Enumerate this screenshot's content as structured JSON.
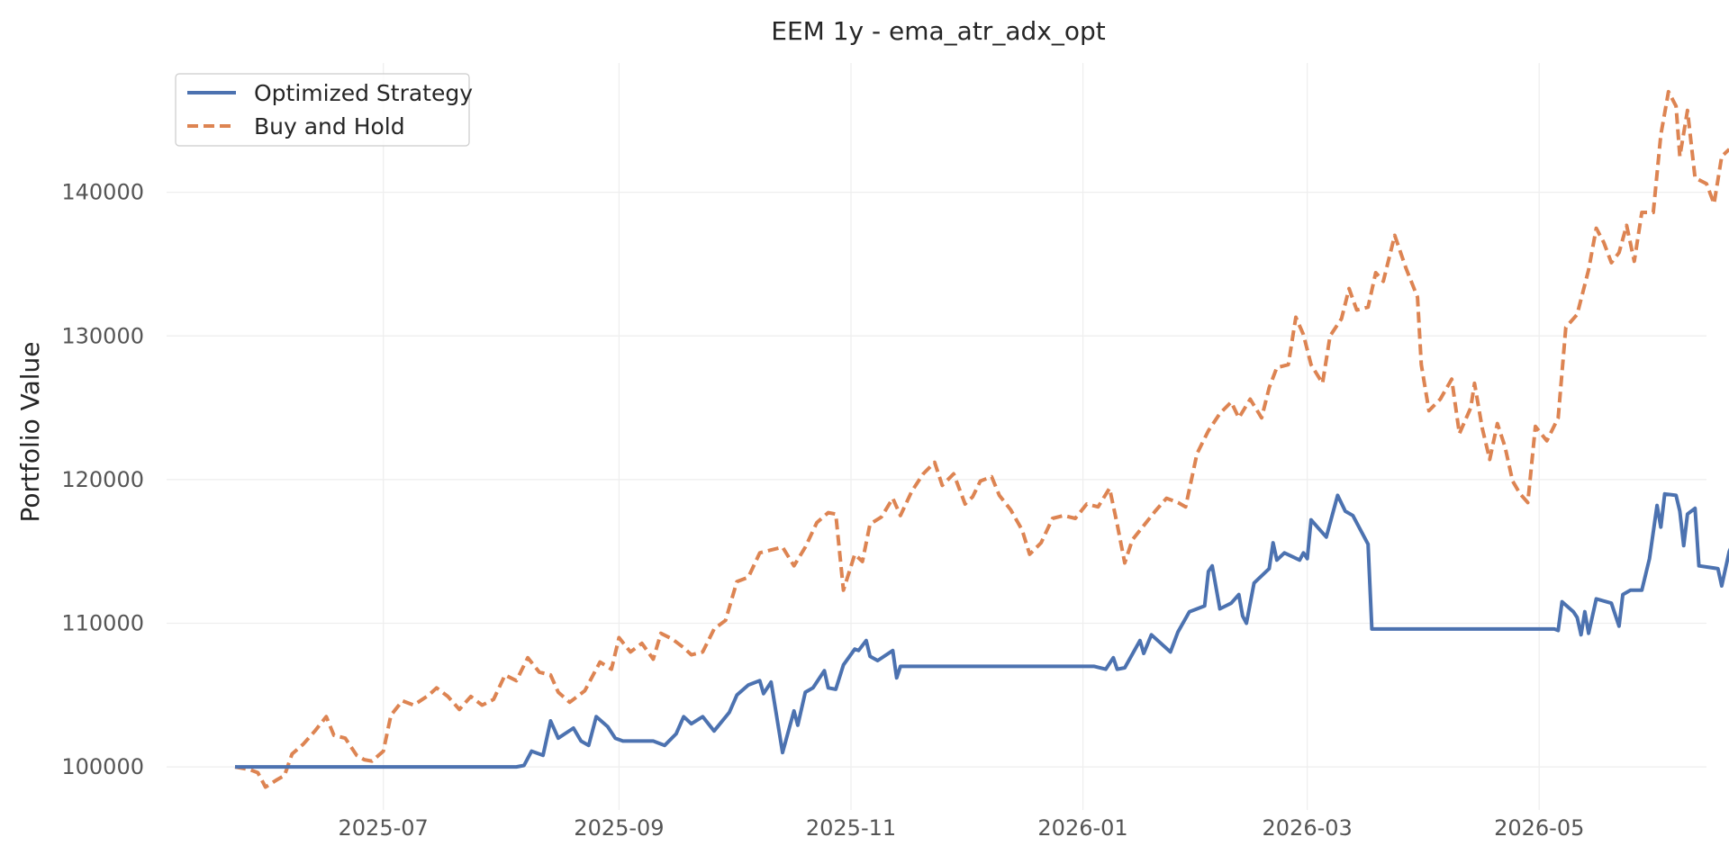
{
  "chart_data": {
    "type": "line",
    "title": "EEM 1y - ema_atr_adx_opt",
    "xlabel": "",
    "ylabel": "Portfolio Value",
    "grid": true,
    "legend_placement": "top-left",
    "ylim": [
      97000,
      149000
    ],
    "xlim": [
      "2025-05-05",
      "2026-06-14"
    ],
    "x_ticks": [
      "2025-07",
      "2025-09",
      "2025-11",
      "2026-01",
      "2026-03",
      "2026-05"
    ],
    "y_ticks": [
      100000,
      110000,
      120000,
      130000,
      140000
    ],
    "series": [
      {
        "name": "Optimized Strategy",
        "color": "#4c72b0",
        "style": "solid",
        "points": [
          [
            "2025-05-23",
            100000
          ],
          [
            "2025-06-15",
            100000
          ],
          [
            "2025-07-10",
            100000
          ],
          [
            "2025-08-05",
            100000
          ],
          [
            "2025-08-07",
            100100
          ],
          [
            "2025-08-09",
            101100
          ],
          [
            "2025-08-12",
            100800
          ],
          [
            "2025-08-14",
            103200
          ],
          [
            "2025-08-16",
            102000
          ],
          [
            "2025-08-20",
            102700
          ],
          [
            "2025-08-22",
            101800
          ],
          [
            "2025-08-24",
            101500
          ],
          [
            "2025-08-26",
            103500
          ],
          [
            "2025-08-29",
            102800
          ],
          [
            "2025-08-31",
            102000
          ],
          [
            "2025-09-02",
            101800
          ],
          [
            "2025-09-10",
            101800
          ],
          [
            "2025-09-13",
            101500
          ],
          [
            "2025-09-16",
            102300
          ],
          [
            "2025-09-18",
            103500
          ],
          [
            "2025-09-20",
            103000
          ],
          [
            "2025-09-23",
            103500
          ],
          [
            "2025-09-26",
            102500
          ],
          [
            "2025-09-30",
            103800
          ],
          [
            "2025-10-02",
            105000
          ],
          [
            "2025-10-05",
            105700
          ],
          [
            "2025-10-08",
            106000
          ],
          [
            "2025-10-09",
            105100
          ],
          [
            "2025-10-11",
            105900
          ],
          [
            "2025-10-14",
            101000
          ],
          [
            "2025-10-17",
            103900
          ],
          [
            "2025-10-18",
            102900
          ],
          [
            "2025-10-20",
            105200
          ],
          [
            "2025-10-22",
            105500
          ],
          [
            "2025-10-25",
            106700
          ],
          [
            "2025-10-26",
            105500
          ],
          [
            "2025-10-28",
            105400
          ],
          [
            "2025-10-30",
            107100
          ],
          [
            "2025-11-02",
            108200
          ],
          [
            "2025-11-03",
            108100
          ],
          [
            "2025-11-05",
            108800
          ],
          [
            "2025-11-06",
            107700
          ],
          [
            "2025-11-08",
            107400
          ],
          [
            "2025-11-12",
            108100
          ],
          [
            "2025-11-13",
            106200
          ],
          [
            "2025-11-14",
            107000
          ],
          [
            "2025-12-15",
            107000
          ],
          [
            "2026-01-04",
            107000
          ],
          [
            "2026-01-07",
            106800
          ],
          [
            "2026-01-09",
            107600
          ],
          [
            "2026-01-10",
            106800
          ],
          [
            "2026-01-12",
            106900
          ],
          [
            "2026-01-16",
            108800
          ],
          [
            "2026-01-17",
            107900
          ],
          [
            "2026-01-19",
            109200
          ],
          [
            "2026-01-24",
            108000
          ],
          [
            "2026-01-26",
            109400
          ],
          [
            "2026-01-29",
            110800
          ],
          [
            "2026-02-02",
            111200
          ],
          [
            "2026-02-03",
            113600
          ],
          [
            "2026-02-04",
            114000
          ],
          [
            "2026-02-06",
            111000
          ],
          [
            "2026-02-09",
            111400
          ],
          [
            "2026-02-11",
            112000
          ],
          [
            "2026-02-12",
            110500
          ],
          [
            "2026-02-13",
            110000
          ],
          [
            "2026-02-15",
            112800
          ],
          [
            "2026-02-19",
            113800
          ],
          [
            "2026-02-20",
            115600
          ],
          [
            "2026-02-21",
            114400
          ],
          [
            "2026-02-23",
            114900
          ],
          [
            "2026-02-27",
            114400
          ],
          [
            "2026-02-28",
            114900
          ],
          [
            "2026-03-01",
            114500
          ],
          [
            "2026-03-02",
            117200
          ],
          [
            "2026-03-04",
            116600
          ],
          [
            "2026-03-06",
            116000
          ],
          [
            "2026-03-09",
            118900
          ],
          [
            "2026-03-11",
            117800
          ],
          [
            "2026-03-13",
            117500
          ],
          [
            "2026-03-17",
            115500
          ],
          [
            "2026-03-18",
            109600
          ],
          [
            "2026-04-01",
            109600
          ],
          [
            "2026-05-05",
            109600
          ],
          [
            "2026-05-06",
            109500
          ],
          [
            "2026-05-07",
            111500
          ],
          [
            "2026-05-10",
            110800
          ],
          [
            "2026-05-11",
            110400
          ],
          [
            "2026-05-12",
            109200
          ],
          [
            "2026-05-13",
            110800
          ],
          [
            "2026-05-14",
            109300
          ],
          [
            "2026-05-16",
            111700
          ],
          [
            "2026-05-20",
            111400
          ],
          [
            "2026-05-22",
            109800
          ],
          [
            "2026-05-23",
            112000
          ],
          [
            "2026-05-25",
            112300
          ],
          [
            "2026-05-28",
            112300
          ],
          [
            "2026-05-30",
            114500
          ],
          [
            "2026-06-01",
            118200
          ],
          [
            "2026-06-02",
            116700
          ],
          [
            "2026-06-03",
            119000
          ],
          [
            "2026-06-06",
            118900
          ],
          [
            "2026-06-07",
            117800
          ],
          [
            "2026-06-08",
            115400
          ],
          [
            "2026-06-09",
            117600
          ],
          [
            "2026-06-11",
            118000
          ],
          [
            "2026-06-12",
            114000
          ],
          [
            "2026-06-17",
            113800
          ],
          [
            "2026-06-18",
            112600
          ],
          [
            "2026-06-20",
            115000
          ],
          [
            "2026-06-21",
            115600
          ],
          [
            "2026-06-23",
            115400
          ]
        ]
      },
      {
        "name": "Buy and Hold",
        "color": "#dd8452",
        "style": "dashed",
        "points": [
          [
            "2025-05-23",
            100000
          ],
          [
            "2025-05-27",
            99800
          ],
          [
            "2025-05-29",
            99600
          ],
          [
            "2025-05-31",
            98600
          ],
          [
            "2025-06-03",
            99100
          ],
          [
            "2025-06-05",
            99400
          ],
          [
            "2025-06-07",
            100900
          ],
          [
            "2025-06-10",
            101600
          ],
          [
            "2025-06-13",
            102500
          ],
          [
            "2025-06-16",
            103500
          ],
          [
            "2025-06-18",
            102200
          ],
          [
            "2025-06-21",
            102000
          ],
          [
            "2025-06-24",
            100800
          ],
          [
            "2025-06-26",
            100500
          ],
          [
            "2025-06-28",
            100400
          ],
          [
            "2025-07-01",
            101100
          ],
          [
            "2025-07-03",
            103600
          ],
          [
            "2025-07-06",
            104600
          ],
          [
            "2025-07-09",
            104300
          ],
          [
            "2025-07-13",
            105000
          ],
          [
            "2025-07-15",
            105500
          ],
          [
            "2025-07-18",
            104900
          ],
          [
            "2025-07-21",
            104000
          ],
          [
            "2025-07-24",
            104900
          ],
          [
            "2025-07-27",
            104300
          ],
          [
            "2025-07-30",
            104700
          ],
          [
            "2025-08-02",
            106400
          ],
          [
            "2025-08-05",
            106000
          ],
          [
            "2025-08-08",
            107600
          ],
          [
            "2025-08-11",
            106600
          ],
          [
            "2025-08-14",
            106400
          ],
          [
            "2025-08-16",
            105200
          ],
          [
            "2025-08-19",
            104500
          ],
          [
            "2025-08-23",
            105300
          ],
          [
            "2025-08-27",
            107300
          ],
          [
            "2025-08-30",
            106800
          ],
          [
            "2025-09-01",
            109000
          ],
          [
            "2025-09-04",
            108000
          ],
          [
            "2025-09-07",
            108600
          ],
          [
            "2025-09-10",
            107500
          ],
          [
            "2025-09-12",
            109300
          ],
          [
            "2025-09-15",
            108900
          ],
          [
            "2025-09-18",
            108300
          ],
          [
            "2025-09-20",
            107800
          ],
          [
            "2025-09-23",
            108000
          ],
          [
            "2025-09-26",
            109600
          ],
          [
            "2025-09-29",
            110200
          ],
          [
            "2025-10-02",
            112900
          ],
          [
            "2025-10-05",
            113200
          ],
          [
            "2025-10-08",
            114900
          ],
          [
            "2025-10-11",
            115100
          ],
          [
            "2025-10-14",
            115300
          ],
          [
            "2025-10-17",
            114000
          ],
          [
            "2025-10-20",
            115300
          ],
          [
            "2025-10-23",
            117000
          ],
          [
            "2025-10-26",
            117700
          ],
          [
            "2025-10-28",
            117600
          ],
          [
            "2025-10-30",
            112300
          ],
          [
            "2025-11-02",
            114800
          ],
          [
            "2025-11-04",
            114300
          ],
          [
            "2025-11-06",
            116900
          ],
          [
            "2025-11-09",
            117400
          ],
          [
            "2025-11-12",
            118700
          ],
          [
            "2025-11-14",
            117500
          ],
          [
            "2025-11-17",
            119200
          ],
          [
            "2025-11-20",
            120400
          ],
          [
            "2025-11-23",
            121200
          ],
          [
            "2025-11-25",
            119600
          ],
          [
            "2025-11-28",
            120400
          ],
          [
            "2025-12-01",
            118300
          ],
          [
            "2025-12-03",
            118800
          ],
          [
            "2025-12-05",
            119900
          ],
          [
            "2025-12-08",
            120200
          ],
          [
            "2025-12-10",
            118900
          ],
          [
            "2025-12-13",
            117900
          ],
          [
            "2025-12-16",
            116500
          ],
          [
            "2025-12-18",
            114800
          ],
          [
            "2025-12-21",
            115600
          ],
          [
            "2025-12-24",
            117300
          ],
          [
            "2025-12-27",
            117500
          ],
          [
            "2025-12-30",
            117300
          ],
          [
            "2026-01-02",
            118300
          ],
          [
            "2026-01-05",
            118100
          ],
          [
            "2026-01-08",
            119400
          ],
          [
            "2026-01-10",
            116900
          ],
          [
            "2026-01-12",
            114200
          ],
          [
            "2026-01-14",
            115800
          ],
          [
            "2026-01-17",
            116800
          ],
          [
            "2026-01-20",
            117800
          ],
          [
            "2026-01-23",
            118700
          ],
          [
            "2026-01-26",
            118400
          ],
          [
            "2026-01-28",
            118100
          ],
          [
            "2026-01-31",
            121800
          ],
          [
            "2026-02-03",
            123400
          ],
          [
            "2026-02-06",
            124600
          ],
          [
            "2026-02-09",
            125400
          ],
          [
            "2026-02-11",
            124300
          ],
          [
            "2026-02-14",
            125600
          ],
          [
            "2026-02-17",
            124300
          ],
          [
            "2026-02-19",
            126400
          ],
          [
            "2026-02-21",
            127800
          ],
          [
            "2026-02-24",
            128000
          ],
          [
            "2026-02-26",
            131300
          ],
          [
            "2026-02-28",
            130100
          ],
          [
            "2026-03-02",
            128000
          ],
          [
            "2026-03-05",
            126700
          ],
          [
            "2026-03-07",
            130000
          ],
          [
            "2026-03-10",
            131200
          ],
          [
            "2026-03-12",
            133300
          ],
          [
            "2026-03-14",
            131800
          ],
          [
            "2026-03-17",
            132000
          ],
          [
            "2026-03-19",
            134400
          ],
          [
            "2026-03-21",
            133800
          ],
          [
            "2026-03-24",
            137000
          ],
          [
            "2026-03-27",
            134700
          ],
          [
            "2026-03-30",
            132700
          ],
          [
            "2026-03-31",
            128000
          ],
          [
            "2026-04-02",
            124800
          ],
          [
            "2026-04-05",
            125600
          ],
          [
            "2026-04-08",
            127000
          ],
          [
            "2026-04-10",
            123200
          ],
          [
            "2026-04-13",
            125000
          ],
          [
            "2026-04-14",
            126700
          ],
          [
            "2026-04-16",
            123600
          ],
          [
            "2026-04-18",
            121400
          ],
          [
            "2026-04-20",
            123900
          ],
          [
            "2026-04-22",
            122300
          ],
          [
            "2026-04-24",
            119900
          ],
          [
            "2026-04-26",
            119000
          ],
          [
            "2026-04-28",
            118400
          ],
          [
            "2026-04-30",
            123700
          ],
          [
            "2026-05-03",
            122700
          ],
          [
            "2026-05-06",
            124300
          ],
          [
            "2026-05-08",
            130600
          ],
          [
            "2026-05-11",
            131500
          ],
          [
            "2026-05-14",
            134600
          ],
          [
            "2026-05-16",
            137500
          ],
          [
            "2026-05-18",
            136500
          ],
          [
            "2026-05-20",
            135100
          ],
          [
            "2026-05-22",
            135800
          ],
          [
            "2026-05-24",
            137700
          ],
          [
            "2026-05-26",
            135200
          ],
          [
            "2026-05-28",
            138600
          ],
          [
            "2026-05-31",
            138600
          ],
          [
            "2026-06-02",
            144000
          ],
          [
            "2026-06-04",
            147000
          ],
          [
            "2026-06-06",
            146000
          ],
          [
            "2026-06-07",
            142500
          ],
          [
            "2026-06-09",
            145700
          ],
          [
            "2026-06-11",
            141000
          ],
          [
            "2026-06-14",
            140600
          ],
          [
            "2026-06-16",
            139200
          ],
          [
            "2026-06-18",
            142500
          ],
          [
            "2026-06-20",
            143000
          ]
        ]
      }
    ]
  }
}
